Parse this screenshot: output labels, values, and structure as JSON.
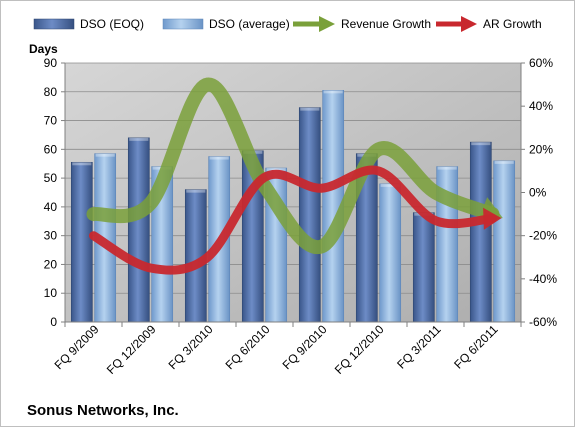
{
  "chart_data": {
    "type": "bar",
    "title": "Sonus Networks, Inc.",
    "ylabel": "Days",
    "categories": [
      "FQ 9/2009",
      "FQ 12/2009",
      "FQ 3/2010",
      "FQ 6/2010",
      "FQ 9/2010",
      "FQ 12/2010",
      "FQ 3/2011",
      "FQ 6/2011"
    ],
    "ylim": [
      0,
      90
    ],
    "y_ticks": [
      "0",
      "10",
      "20",
      "30",
      "40",
      "50",
      "60",
      "70",
      "80",
      "90"
    ],
    "y2lim": [
      -60,
      60
    ],
    "y2_ticks": [
      "-60%",
      "-40%",
      "-20%",
      "0%",
      "20%",
      "40%",
      "60%"
    ],
    "legend_position": "top",
    "gridlines": true,
    "plot_background": "#c0c0c0",
    "series": [
      {
        "name": "DSO (EOQ)",
        "kind": "bar",
        "axis": "left",
        "color": "#4f6fa8",
        "values": [
          55.5,
          64,
          46,
          59.5,
          74.5,
          58.5,
          38,
          62.5
        ]
      },
      {
        "name": "DSO (average)",
        "kind": "bar",
        "axis": "left",
        "color": "#8fb6e0",
        "values": [
          58.5,
          54,
          57.5,
          53.5,
          80.5,
          48,
          54,
          56
        ]
      },
      {
        "name": "Revenue Growth",
        "kind": "line",
        "axis": "right",
        "color": "#7aa03a",
        "values": [
          -10,
          -5,
          50,
          3,
          -25,
          20,
          0,
          -10
        ]
      },
      {
        "name": "AR Growth",
        "kind": "line",
        "axis": "right",
        "color": "#c8282e",
        "values": [
          -20,
          -35,
          -30,
          7,
          2,
          10,
          -13,
          -12
        ]
      }
    ]
  }
}
